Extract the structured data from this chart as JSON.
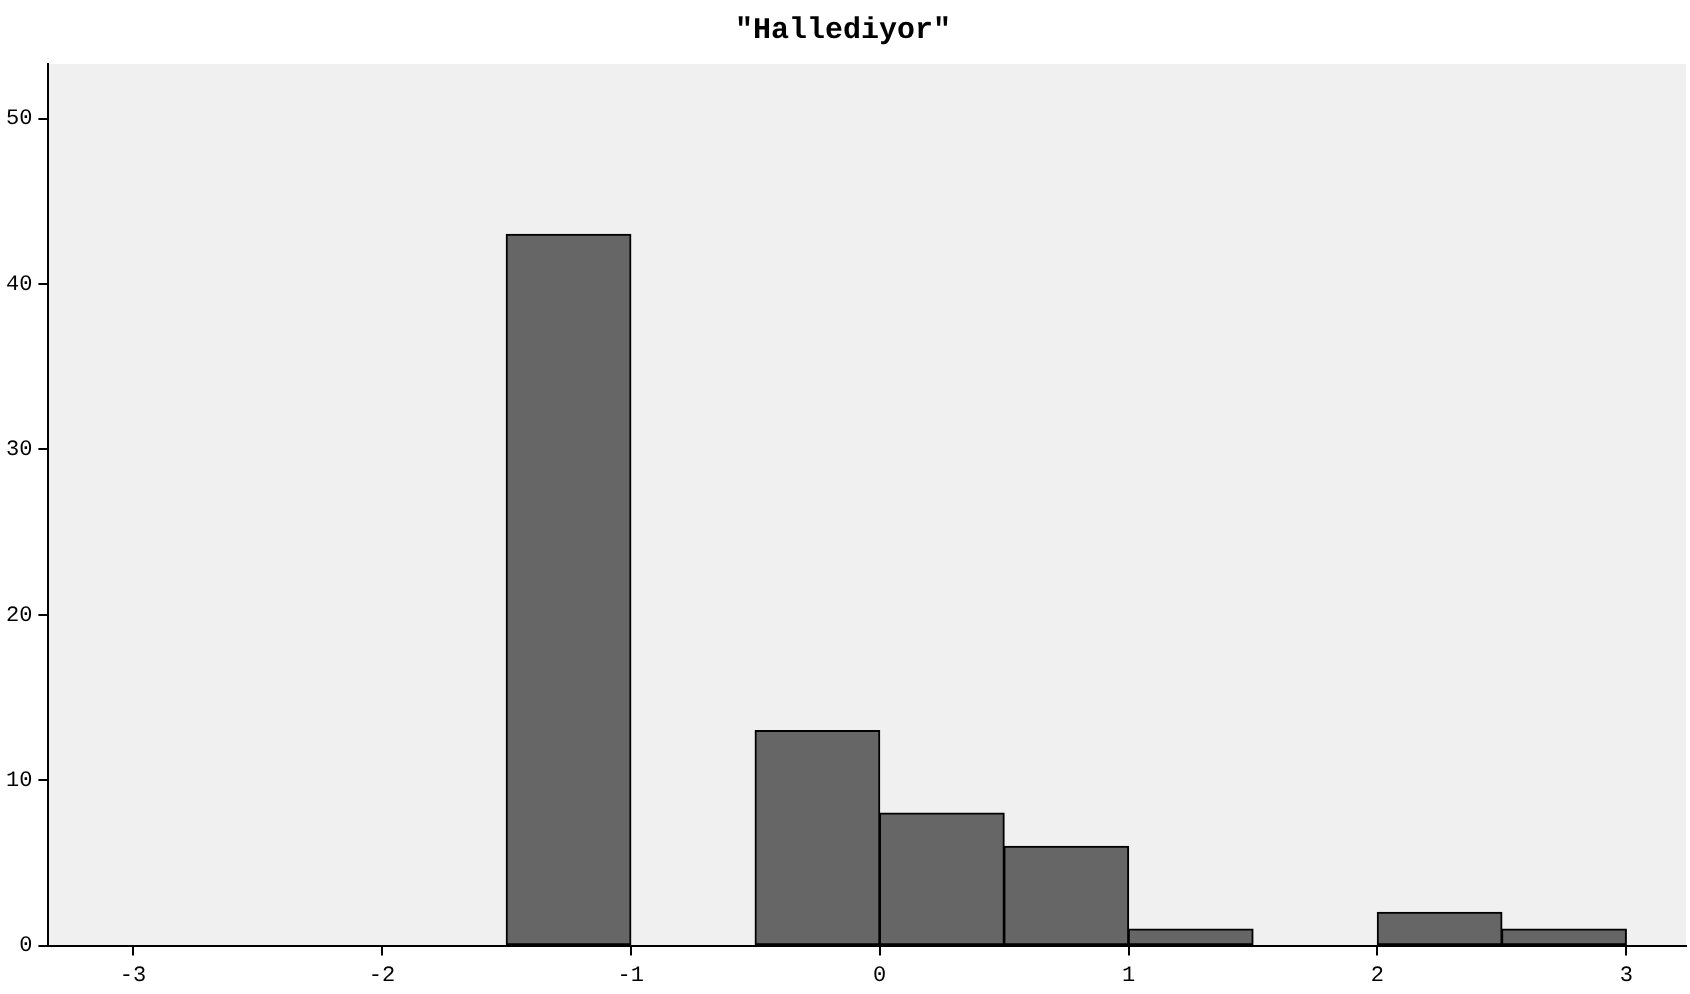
{
  "chart_data": {
    "type": "histogram",
    "title": "\"Hallediyor\"",
    "bins": [
      -1.5,
      -1,
      -0.5,
      0,
      0.5,
      1,
      1.5,
      2,
      2.5,
      3
    ],
    "values": [
      43,
      0,
      13,
      8,
      6,
      1,
      0,
      2,
      1
    ],
    "color": "#666666",
    "xlim": [
      -3.34,
      3.24
    ],
    "xticks": [
      -3,
      -2,
      -1,
      0,
      1,
      2,
      3
    ],
    "ylim": [
      0,
      53.3
    ],
    "yticks": [
      0,
      10,
      20,
      30,
      40,
      50
    ],
    "grid": false,
    "legend": false
  }
}
